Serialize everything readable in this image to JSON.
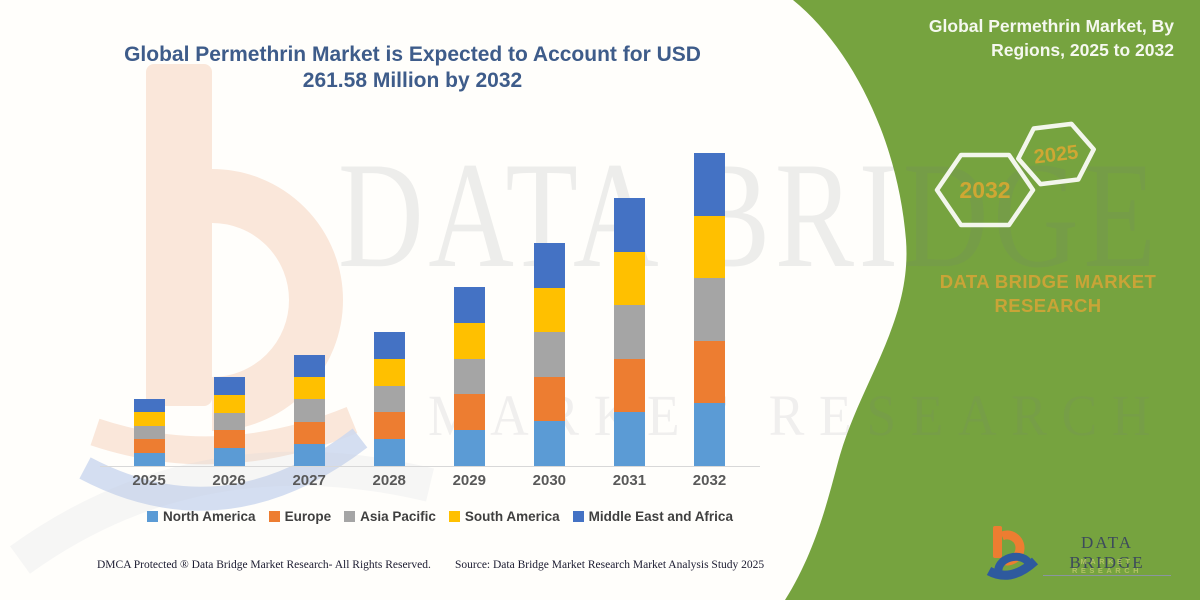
{
  "header": {
    "title_line1": "Global Permethrin Market is Expected to Account for USD",
    "title_line2": "261.58 Million by 2032"
  },
  "side_panel": {
    "heading": "Global Permethrin Market, By Regions, 2025 to 2032",
    "hexagon_back_label": "2032",
    "hexagon_front_label": "2025",
    "brand_line1": "DATA BRIDGE MARKET",
    "brand_line2": "RESEARCH",
    "bg_color": "#76a33f",
    "gold_color": "#c9a437"
  },
  "chart_data": {
    "type": "bar",
    "stacked": true,
    "unit": "USD Million",
    "title": "Global Permethrin Market is Expected to Account for USD 261.58 Million by 2032",
    "xlabel": "",
    "ylabel": "",
    "axis_shown": false,
    "grid": false,
    "legend_position": "bottom",
    "categories": [
      "2025",
      "2026",
      "2027",
      "2028",
      "2029",
      "2030",
      "2031",
      "2032"
    ],
    "totals": [
      56.0,
      74.4,
      92.8,
      112.0,
      149.6,
      186.4,
      224.0,
      261.58
    ],
    "series": [
      {
        "name": "North America",
        "color": "#5b9bd5",
        "values": [
          11.2,
          14.9,
          18.6,
          22.4,
          29.9,
          37.3,
          44.8,
          52.3
        ]
      },
      {
        "name": "Europe",
        "color": "#ed7d31",
        "values": [
          11.2,
          14.9,
          18.6,
          22.4,
          29.9,
          37.3,
          44.8,
          52.3
        ]
      },
      {
        "name": "Asia Pacific",
        "color": "#a5a5a5",
        "values": [
          11.2,
          14.9,
          18.6,
          22.4,
          29.9,
          37.3,
          44.8,
          52.3
        ]
      },
      {
        "name": "South America",
        "color": "#ffc000",
        "values": [
          11.2,
          14.9,
          18.6,
          22.4,
          29.9,
          37.3,
          44.8,
          52.3
        ]
      },
      {
        "name": "Middle East and Africa",
        "color": "#4472c4",
        "values": [
          11.2,
          14.9,
          18.6,
          22.4,
          29.9,
          37.3,
          44.8,
          52.3
        ]
      }
    ]
  },
  "watermark": {
    "text_line1": "DATA BRIDGE",
    "text_line2": "MARKET RESEARCH"
  },
  "footer": {
    "left": "DMCA Protected ® Data Bridge Market Research- All Rights Reserved.",
    "right": "Source: Data Bridge Market Research Market Analysis Study 2025"
  },
  "logo": {
    "name": "DATA BRIDGE",
    "sub": "MARKET RESEARCH"
  }
}
